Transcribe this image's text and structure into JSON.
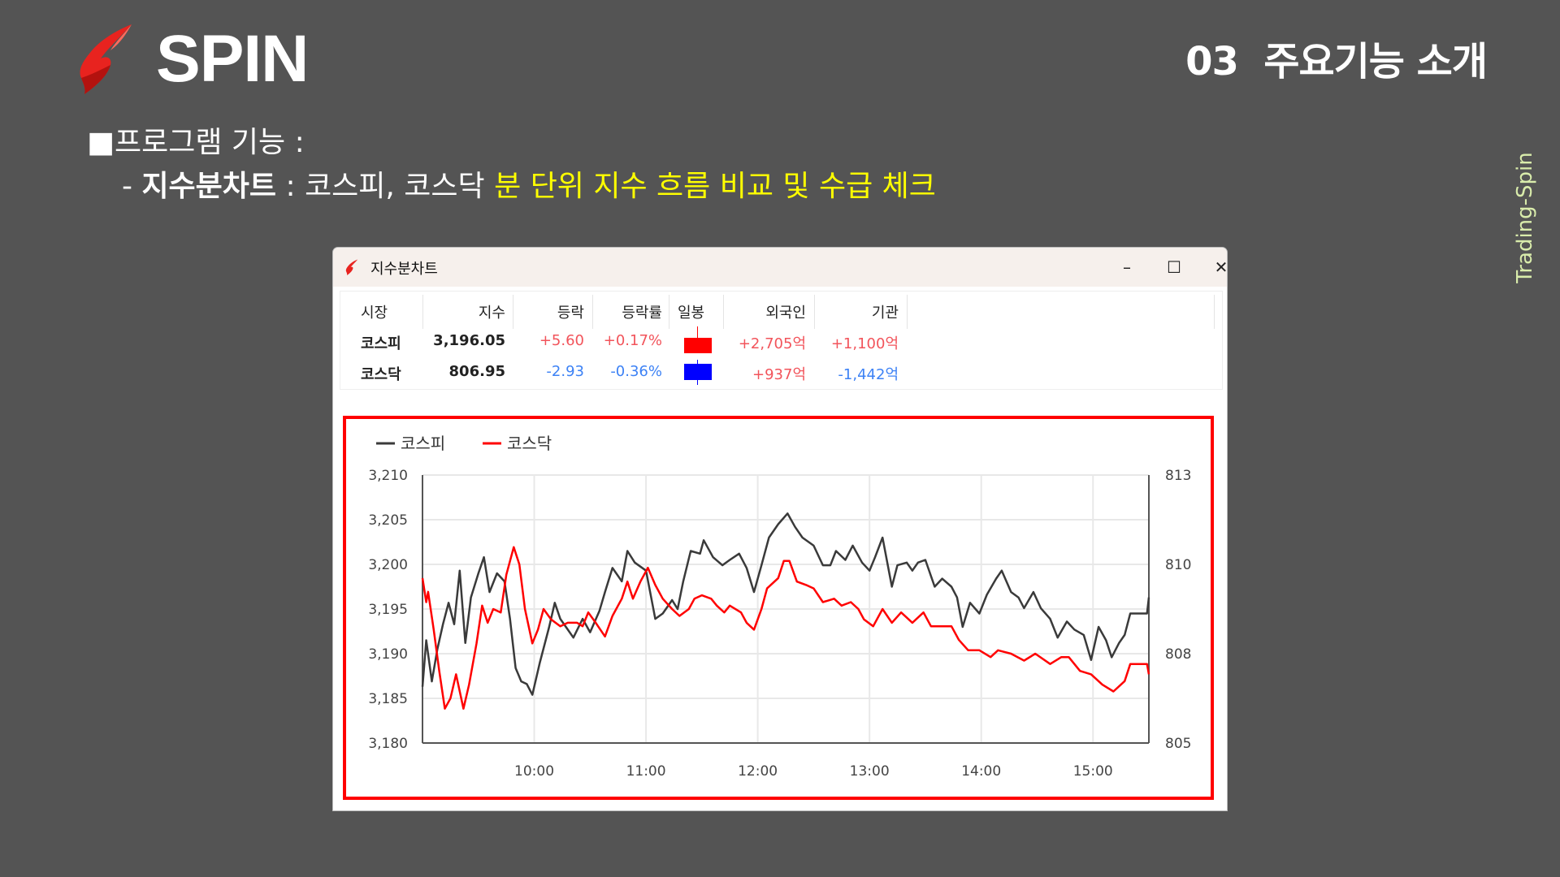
{
  "header": {
    "brand": "SPIN",
    "section_title": "03  주요기능 소개",
    "side_label": "Trading-Spin"
  },
  "intro": {
    "line1": "■프로그램 기능 :",
    "line2_prefix": "- ",
    "line2_bold": "지수분차트",
    "line2_mid": " : 코스피, 코스닥 ",
    "line2_highlight": "분 단위 지수 흐름 비교 및 수급 체크"
  },
  "window": {
    "title": "지수분차트",
    "minimize": "–",
    "maximize": "☐",
    "close": "✕"
  },
  "table": {
    "headers": [
      "시장",
      "지수",
      "등락",
      "등락률",
      "일봉",
      "외국인",
      "기관"
    ],
    "rows": [
      {
        "market": "코스피",
        "index": "3,196.05",
        "change": "+5.60",
        "rate": "+0.17%",
        "candle": "up",
        "foreign": "+2,705",
        "institution": "+1,100",
        "unit": "억"
      },
      {
        "market": "코스닥",
        "index": "806.95",
        "change": "-2.93",
        "rate": "-0.36%",
        "candle": "down",
        "foreign": "+937",
        "institution": "-1,442",
        "unit": "억"
      }
    ]
  },
  "colors": {
    "up": "#ff0000",
    "down": "#0000ff",
    "kospi_line": "#3a3a3a",
    "kosdaq_line": "#ff0000",
    "frame": "#ff0000"
  },
  "chart_data": {
    "type": "line",
    "legend": [
      "코스피",
      "코스닥"
    ],
    "legend_placement": "top-left",
    "grid": true,
    "x_range": [
      "09:00",
      "15:30"
    ],
    "x_ticks": [
      "10:00",
      "11:00",
      "12:00",
      "13:00",
      "14:00",
      "15:00"
    ],
    "y_left": {
      "ylim": [
        3180,
        3210
      ],
      "ticks": [
        "3,180",
        "3,185",
        "3,190",
        "3,195",
        "3,200",
        "3,205",
        "3,210"
      ]
    },
    "y_right": {
      "ylim": [
        805,
        812.8
      ],
      "ticks": [
        "805",
        "808",
        "810",
        "813"
      ]
    },
    "series": [
      {
        "name": "코스피",
        "axis": "left",
        "points": [
          [
            "09:00",
            3186.3
          ],
          [
            "09:02",
            3191.5
          ],
          [
            "09:05",
            3186.9
          ],
          [
            "09:08",
            3190.5
          ],
          [
            "09:11",
            3193.3
          ],
          [
            "09:14",
            3195.7
          ],
          [
            "09:17",
            3193.3
          ],
          [
            "09:20",
            3199.3
          ],
          [
            "09:23",
            3191.2
          ],
          [
            "09:26",
            3196.3
          ],
          [
            "09:30",
            3199.0
          ],
          [
            "09:33",
            3200.8
          ],
          [
            "09:36",
            3196.9
          ],
          [
            "09:40",
            3199.0
          ],
          [
            "09:44",
            3198.1
          ],
          [
            "09:47",
            3193.9
          ],
          [
            "09:50",
            3188.4
          ],
          [
            "09:53",
            3186.9
          ],
          [
            "09:56",
            3186.6
          ],
          [
            "09:59",
            3185.4
          ],
          [
            "10:03",
            3189.0
          ],
          [
            "10:08",
            3193.0
          ],
          [
            "10:11",
            3195.7
          ],
          [
            "10:14",
            3193.9
          ],
          [
            "10:17",
            3193.0
          ],
          [
            "10:21",
            3191.8
          ],
          [
            "10:26",
            3193.9
          ],
          [
            "10:30",
            3192.4
          ],
          [
            "10:35",
            3194.8
          ],
          [
            "10:38",
            3196.9
          ],
          [
            "10:42",
            3199.6
          ],
          [
            "10:47",
            3198.1
          ],
          [
            "10:50",
            3201.5
          ],
          [
            "10:54",
            3200.2
          ],
          [
            "11:00",
            3199.3
          ],
          [
            "11:05",
            3193.9
          ],
          [
            "11:09",
            3194.5
          ],
          [
            "11:14",
            3196.0
          ],
          [
            "11:17",
            3195.0
          ],
          [
            "11:20",
            3198.1
          ],
          [
            "11:24",
            3201.5
          ],
          [
            "11:29",
            3201.2
          ],
          [
            "11:31",
            3202.7
          ],
          [
            "11:36",
            3200.8
          ],
          [
            "11:41",
            3199.9
          ],
          [
            "11:45",
            3200.5
          ],
          [
            "11:50",
            3201.2
          ],
          [
            "11:54",
            3199.6
          ],
          [
            "11:58",
            3196.9
          ],
          [
            "12:02",
            3199.9
          ],
          [
            "12:06",
            3203.0
          ],
          [
            "12:11",
            3204.5
          ],
          [
            "12:16",
            3205.7
          ],
          [
            "12:20",
            3204.2
          ],
          [
            "12:24",
            3203.0
          ],
          [
            "12:30",
            3202.1
          ],
          [
            "12:35",
            3199.9
          ],
          [
            "12:39",
            3199.9
          ],
          [
            "12:42",
            3201.5
          ],
          [
            "12:47",
            3200.5
          ],
          [
            "12:51",
            3202.1
          ],
          [
            "12:56",
            3200.2
          ],
          [
            "13:00",
            3199.3
          ],
          [
            "13:03",
            3200.8
          ],
          [
            "13:07",
            3203.0
          ],
          [
            "13:12",
            3197.5
          ],
          [
            "13:15",
            3199.9
          ],
          [
            "13:20",
            3200.2
          ],
          [
            "13:23",
            3199.3
          ],
          [
            "13:26",
            3200.2
          ],
          [
            "13:30",
            3200.5
          ],
          [
            "13:35",
            3197.5
          ],
          [
            "13:39",
            3198.4
          ],
          [
            "13:44",
            3197.5
          ],
          [
            "13:47",
            3196.3
          ],
          [
            "13:50",
            3193.0
          ],
          [
            "13:54",
            3195.7
          ],
          [
            "13:59",
            3194.5
          ],
          [
            "14:03",
            3196.6
          ],
          [
            "14:08",
            3198.4
          ],
          [
            "14:11",
            3199.3
          ],
          [
            "14:16",
            3196.9
          ],
          [
            "14:20",
            3196.3
          ],
          [
            "14:23",
            3195.1
          ],
          [
            "14:28",
            3196.9
          ],
          [
            "14:32",
            3195.1
          ],
          [
            "14:37",
            3193.9
          ],
          [
            "14:41",
            3191.8
          ],
          [
            "14:46",
            3193.6
          ],
          [
            "14:50",
            3192.7
          ],
          [
            "14:55",
            3192.1
          ],
          [
            "14:59",
            3189.3
          ],
          [
            "15:03",
            3193.0
          ],
          [
            "15:07",
            3191.5
          ],
          [
            "15:10",
            3189.6
          ],
          [
            "15:14",
            3191.2
          ],
          [
            "15:17",
            3192.1
          ],
          [
            "15:20",
            3194.5
          ],
          [
            "15:29",
            3194.5
          ],
          [
            "15:30",
            3196.3
          ]
        ]
      },
      {
        "name": "코스닥",
        "axis": "right",
        "points": [
          [
            "09:00",
            809.8
          ],
          [
            "09:02",
            809.1
          ],
          [
            "09:03",
            809.4
          ],
          [
            "09:06",
            808.3
          ],
          [
            "09:09",
            807.1
          ],
          [
            "09:12",
            806.0
          ],
          [
            "09:15",
            806.3
          ],
          [
            "09:18",
            807.0
          ],
          [
            "09:22",
            806.0
          ],
          [
            "09:25",
            806.7
          ],
          [
            "09:29",
            807.9
          ],
          [
            "09:32",
            809.0
          ],
          [
            "09:35",
            808.5
          ],
          [
            "09:38",
            808.9
          ],
          [
            "09:42",
            808.8
          ],
          [
            "09:45",
            809.9
          ],
          [
            "09:49",
            810.7
          ],
          [
            "09:52",
            810.2
          ],
          [
            "09:55",
            808.9
          ],
          [
            "09:59",
            807.9
          ],
          [
            "10:02",
            808.3
          ],
          [
            "10:05",
            808.9
          ],
          [
            "10:09",
            808.6
          ],
          [
            "10:14",
            808.4
          ],
          [
            "10:18",
            808.5
          ],
          [
            "10:23",
            808.5
          ],
          [
            "10:26",
            808.4
          ],
          [
            "10:29",
            808.8
          ],
          [
            "10:33",
            808.5
          ],
          [
            "10:38",
            808.1
          ],
          [
            "10:42",
            808.7
          ],
          [
            "10:47",
            809.2
          ],
          [
            "10:50",
            809.7
          ],
          [
            "10:53",
            809.2
          ],
          [
            "10:57",
            809.7
          ],
          [
            "11:01",
            810.1
          ],
          [
            "11:05",
            809.6
          ],
          [
            "11:09",
            809.2
          ],
          [
            "11:14",
            808.9
          ],
          [
            "11:18",
            808.7
          ],
          [
            "11:23",
            808.9
          ],
          [
            "11:26",
            809.2
          ],
          [
            "11:30",
            809.3
          ],
          [
            "11:35",
            809.2
          ],
          [
            "11:38",
            809.0
          ],
          [
            "11:42",
            808.8
          ],
          [
            "11:45",
            809.0
          ],
          [
            "11:51",
            808.8
          ],
          [
            "11:54",
            808.5
          ],
          [
            "11:58",
            808.3
          ],
          [
            "12:02",
            808.9
          ],
          [
            "12:05",
            809.5
          ],
          [
            "12:11",
            809.8
          ],
          [
            "12:14",
            810.3
          ],
          [
            "12:17",
            810.3
          ],
          [
            "12:21",
            809.7
          ],
          [
            "12:26",
            809.6
          ],
          [
            "12:30",
            809.5
          ],
          [
            "12:35",
            809.1
          ],
          [
            "12:41",
            809.2
          ],
          [
            "12:45",
            809.0
          ],
          [
            "12:50",
            809.1
          ],
          [
            "12:54",
            808.9
          ],
          [
            "12:57",
            808.6
          ],
          [
            "13:02",
            808.4
          ],
          [
            "13:07",
            808.9
          ],
          [
            "13:12",
            808.5
          ],
          [
            "13:17",
            808.8
          ],
          [
            "13:23",
            808.5
          ],
          [
            "13:29",
            808.8
          ],
          [
            "13:33",
            808.4
          ],
          [
            "13:39",
            808.4
          ],
          [
            "13:44",
            808.4
          ],
          [
            "13:48",
            808.0
          ],
          [
            "13:53",
            807.7
          ],
          [
            "13:59",
            807.7
          ],
          [
            "14:05",
            807.5
          ],
          [
            "14:09",
            807.7
          ],
          [
            "14:16",
            807.6
          ],
          [
            "14:23",
            807.4
          ],
          [
            "14:29",
            807.6
          ],
          [
            "14:37",
            807.3
          ],
          [
            "14:43",
            807.5
          ],
          [
            "14:47",
            807.5
          ],
          [
            "14:53",
            807.1
          ],
          [
            "14:59",
            807.0
          ],
          [
            "15:05",
            806.7
          ],
          [
            "15:11",
            806.5
          ],
          [
            "15:17",
            806.8
          ],
          [
            "15:20",
            807.3
          ],
          [
            "15:29",
            807.3
          ],
          [
            "15:30",
            807.0
          ]
        ]
      }
    ]
  }
}
